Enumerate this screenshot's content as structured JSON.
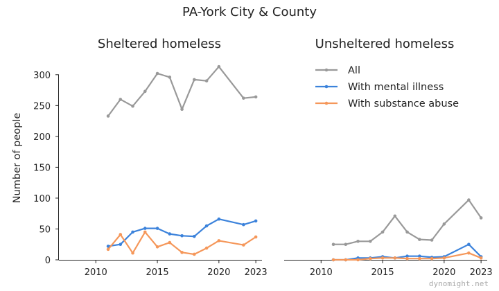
{
  "title": "PA-York City & County",
  "watermark": "dynomight.net",
  "ylabel": "Number of people",
  "legend": {
    "placement": "top-right",
    "entries": [
      "All",
      "With mental illness",
      "With substance abuse"
    ]
  },
  "colors": {
    "All": "#999999",
    "With mental illness": "#3b82db",
    "With substance abuse": "#f5975a"
  },
  "chart_data": [
    {
      "type": "line",
      "title": "Sheltered homeless",
      "xlabel": "",
      "ylabel": "Number of people",
      "xlim": [
        2007,
        2023.5
      ],
      "ylim": [
        0,
        320
      ],
      "xticks": [
        2010,
        2015,
        2020,
        2023
      ],
      "yticks": [
        0,
        50,
        100,
        150,
        200,
        250,
        300
      ],
      "grid": false,
      "x": [
        2011,
        2012,
        2013,
        2014,
        2015,
        2016,
        2017,
        2018,
        2019,
        2020,
        2022,
        2023
      ],
      "series": [
        {
          "name": "All",
          "values": [
            233,
            260,
            249,
            273,
            302,
            296,
            244,
            292,
            290,
            313,
            262,
            264
          ]
        },
        {
          "name": "With mental illness",
          "values": [
            22,
            25,
            45,
            51,
            51,
            42,
            39,
            38,
            55,
            66,
            57,
            63
          ]
        },
        {
          "name": "With substance abuse",
          "values": [
            17,
            41,
            11,
            45,
            21,
            28,
            12,
            9,
            19,
            31,
            24,
            37
          ]
        }
      ]
    },
    {
      "type": "line",
      "title": "Unsheltered homeless",
      "xlabel": "",
      "ylabel": "",
      "xlim": [
        2007,
        2023.5
      ],
      "ylim": [
        0,
        320
      ],
      "xticks": [
        2010,
        2015,
        2020,
        2023
      ],
      "yticks": [],
      "grid": false,
      "x": [
        2011,
        2012,
        2013,
        2014,
        2015,
        2016,
        2017,
        2018,
        2019,
        2020,
        2022,
        2023
      ],
      "series": [
        {
          "name": "All",
          "values": [
            25,
            25,
            30,
            30,
            45,
            71,
            45,
            33,
            32,
            58,
            97,
            68
          ]
        },
        {
          "name": "With mental illness",
          "values": [
            0,
            0,
            3,
            3,
            5,
            3,
            6,
            6,
            4,
            5,
            25,
            5
          ]
        },
        {
          "name": "With substance abuse",
          "values": [
            0,
            0,
            0,
            2,
            3,
            3,
            2,
            2,
            2,
            3,
            11,
            3
          ]
        }
      ]
    }
  ]
}
